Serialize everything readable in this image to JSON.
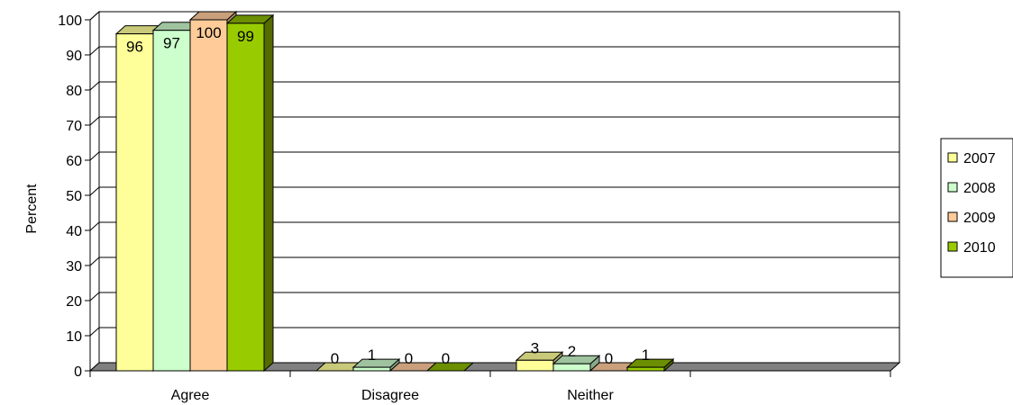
{
  "chart_data": {
    "type": "bar",
    "style": "3d-clustered",
    "categories": [
      "Agree",
      "Disagree",
      "Neither"
    ],
    "series": [
      {
        "name": "2007",
        "values": [
          96,
          0,
          3
        ],
        "color": "#FFFF99",
        "side_color": "#A3A36B",
        "top_color": "#C9C97A"
      },
      {
        "name": "2008",
        "values": [
          97,
          1,
          2
        ],
        "color": "#CCFFCC",
        "side_color": "#8AA88A",
        "top_color": "#9FC39F"
      },
      {
        "name": "2009",
        "values": [
          100,
          0,
          0
        ],
        "color": "#FFCC99",
        "side_color": "#B08F6E",
        "top_color": "#C9A07B"
      },
      {
        "name": "2010",
        "values": [
          99,
          0,
          1
        ],
        "color": "#99CC00",
        "side_color": "#556B00",
        "top_color": "#6B8F00"
      }
    ],
    "data_labels": [
      [
        "96",
        "97",
        "100",
        "99"
      ],
      [
        "0",
        "1",
        "0",
        "0"
      ],
      [
        "3",
        "2",
        "0",
        "1"
      ]
    ],
    "title": "",
    "xlabel": "",
    "ylabel": "Percent",
    "ylim": [
      0,
      100
    ],
    "yticks": [
      0,
      10,
      20,
      30,
      40,
      50,
      60,
      70,
      80,
      90,
      100
    ],
    "grid": true,
    "legend_position": "right",
    "floor_color": "#808080",
    "wall_color": "#ffffff"
  }
}
